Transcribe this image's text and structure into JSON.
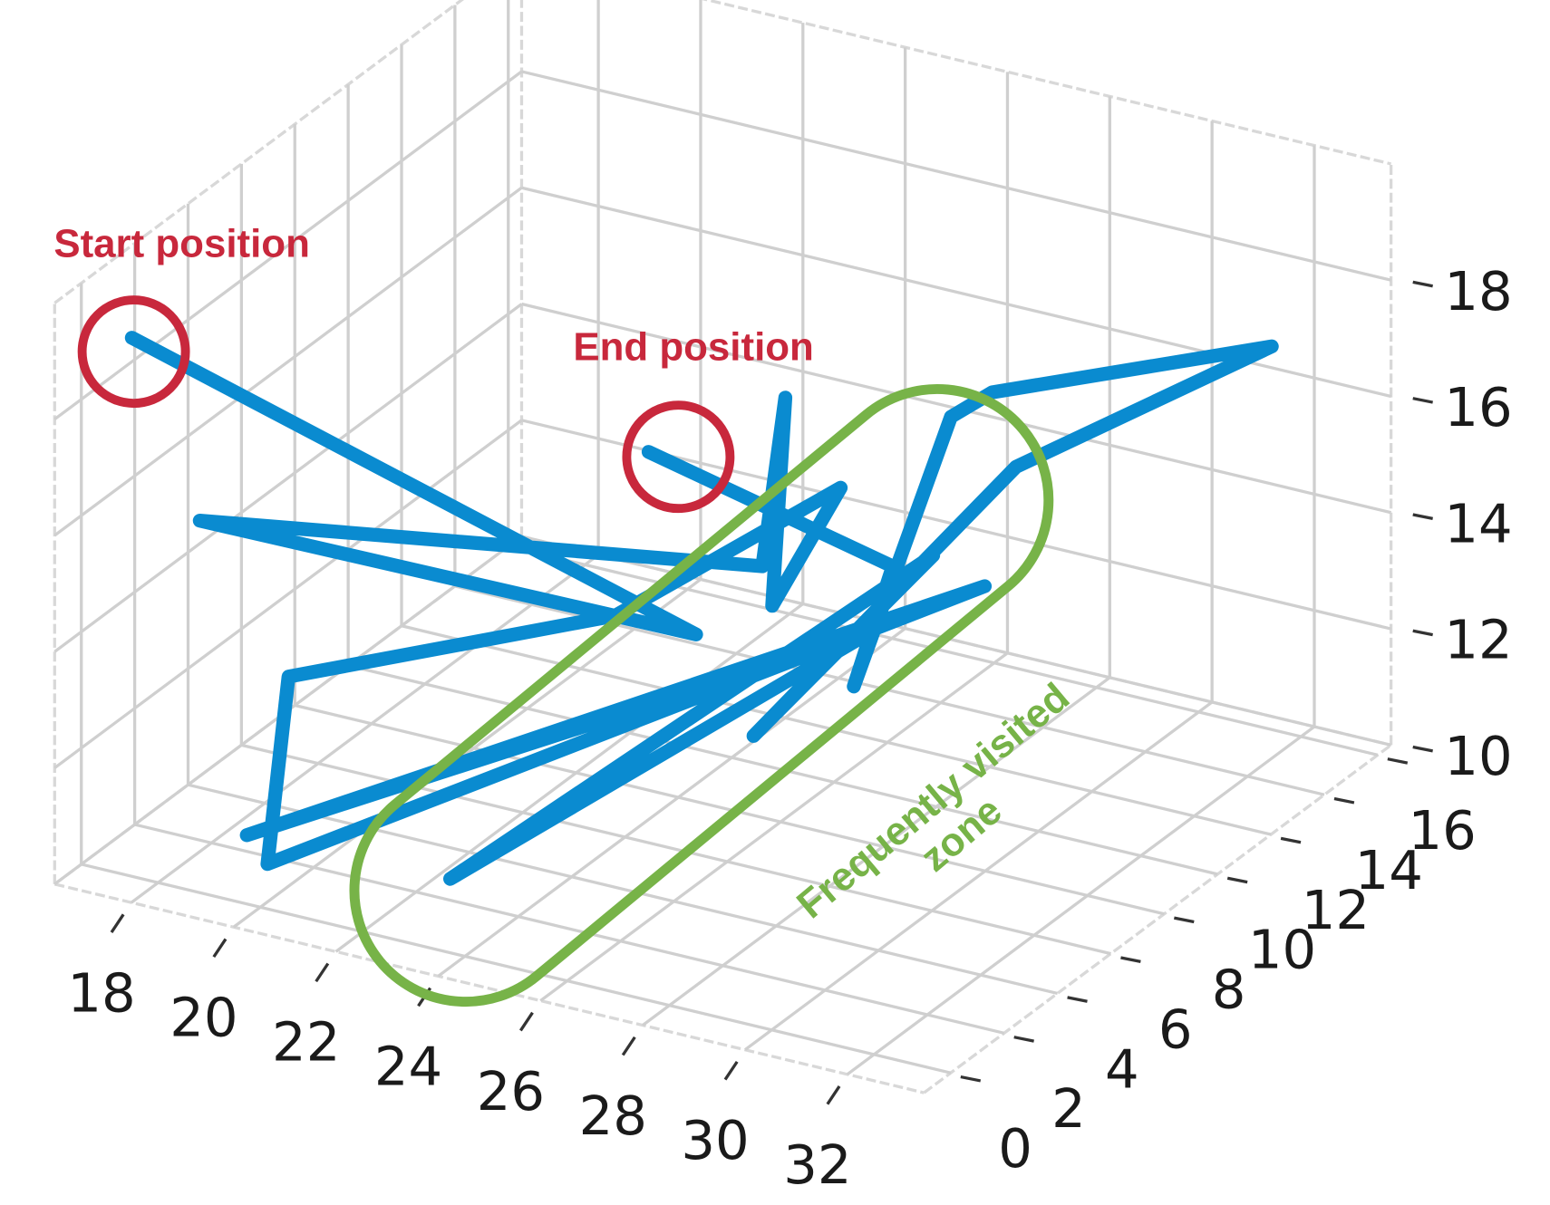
{
  "chart_data": {
    "type": "line3d",
    "annotations": {
      "start": "Start position",
      "end": "End position",
      "zone": [
        "Frequently visited",
        "zone"
      ]
    },
    "x": [
      16.6,
      26.8,
      17.2,
      27.0,
      26.3,
      26.2,
      26.6,
      23.5,
      19.3,
      20.4,
      27.8,
      20.1,
      27.0,
      23.4,
      27.0,
      26.2,
      28.2,
      31.9,
      28.1,
      27.4,
      26.7,
      27.2,
      24.2
    ],
    "y": [
      1.7,
      3.3,
      3.1,
      5.4,
      7.6,
      7.3,
      9.1,
      6.6,
      2.4,
      -0.5,
      12.2,
      -0.7,
      9.2,
      0.6,
      11.8,
      6.6,
      12.6,
      15.1,
      11.9,
      11.7,
      9.4,
      9.9,
      6.5
    ],
    "z": [
      18.5,
      15,
      15,
      15.5,
      17.5,
      14,
      15.5,
      13.5,
      13,
      11,
      13,
      11.5,
      13,
      11,
      13.5,
      12,
      15,
      17,
      16.5,
      16,
      12,
      14,
      16.5
    ],
    "color": "#0a8bd0",
    "xlim": [
      16.5,
      33.5
    ],
    "ylim": [
      -1,
      16.5
    ],
    "zlim": [
      10,
      20
    ],
    "xticks": [
      18,
      20,
      22,
      24,
      26,
      28,
      30,
      32
    ],
    "yticks": [
      0,
      2,
      4,
      6,
      8,
      10,
      12,
      14,
      16
    ],
    "zticks": [
      10,
      12,
      14,
      16,
      18
    ],
    "grid": true
  }
}
